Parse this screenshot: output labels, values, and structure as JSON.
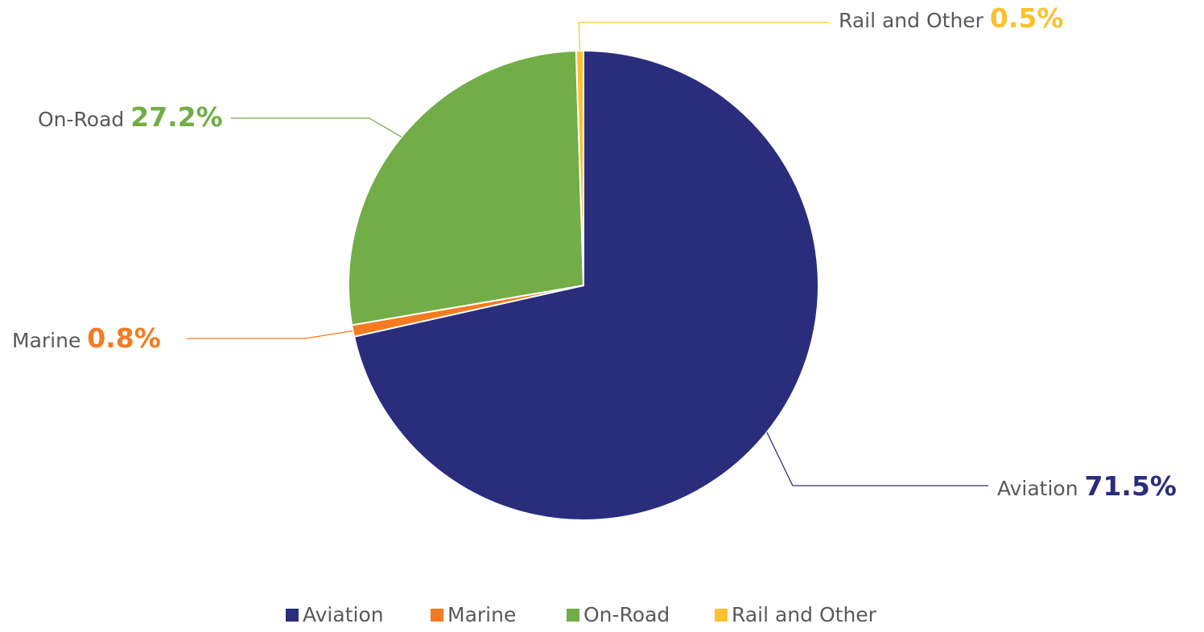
{
  "chart_data": {
    "type": "pie",
    "title": "",
    "start_angle_deg": 0,
    "direction": "clockwise",
    "legend": "bottom",
    "slices": [
      {
        "label": "Aviation",
        "value": 71.5,
        "value_label": "71.5%",
        "color": "#2a2d7c"
      },
      {
        "label": "Marine",
        "value": 0.8,
        "value_label": "0.8%",
        "color": "#f47b20"
      },
      {
        "label": "On-Road",
        "value": 27.2,
        "value_label": "27.2%",
        "color": "#72ad48"
      },
      {
        "label": "Rail and Other",
        "value": 0.5,
        "value_label": "0.5%",
        "color": "#fbc22d"
      }
    ]
  }
}
